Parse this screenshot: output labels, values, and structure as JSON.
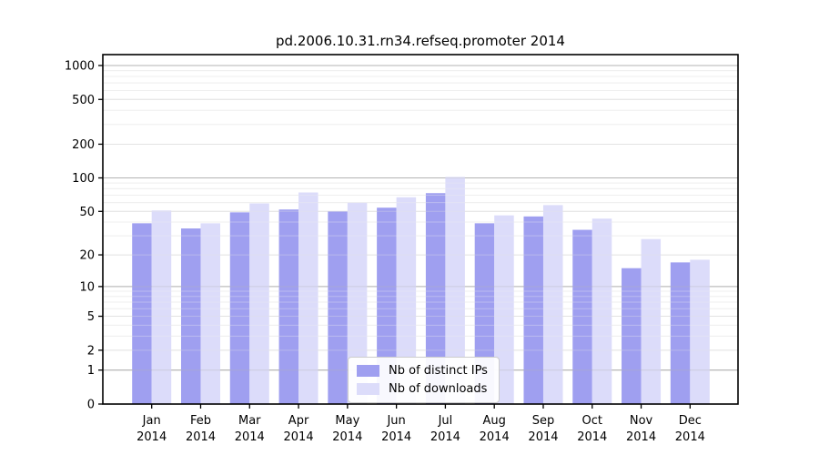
{
  "title": "pd.2006.10.31.rn34.refseq.promoter 2014",
  "chart_data": {
    "type": "bar",
    "title": "pd.2006.10.31.rn34.refseq.promoter 2014",
    "xlabel": "",
    "ylabel": "",
    "yscale": "log1p",
    "grid": true,
    "legend_position": "lower center",
    "ylim": [
      0,
      1230
    ],
    "yticks": [
      0,
      1,
      2,
      5,
      10,
      20,
      50,
      100,
      200,
      500,
      1000
    ],
    "categories": [
      "Jan 2014",
      "Feb 2014",
      "Mar 2014",
      "Apr 2014",
      "May 2014",
      "Jun 2014",
      "Jul 2014",
      "Aug 2014",
      "Sep 2014",
      "Oct 2014",
      "Nov 2014",
      "Dec 2014"
    ],
    "series": [
      {
        "name": "Nb of distinct IPs",
        "color": "#9f9ff0",
        "values": [
          39,
          35,
          49,
          52,
          50,
          54,
          73,
          39,
          45,
          34,
          15,
          17
        ]
      },
      {
        "name": "Nb of downloads",
        "color": "#dcdcfa",
        "values": [
          51,
          39,
          59,
          74,
          60,
          67,
          102,
          46,
          57,
          43,
          28,
          18
        ]
      }
    ]
  },
  "colors": {
    "major_grid": "#b3b3b3",
    "tick_grid": "#e3e3e3",
    "minor_grid": "#efefef",
    "axis": "#000000"
  }
}
